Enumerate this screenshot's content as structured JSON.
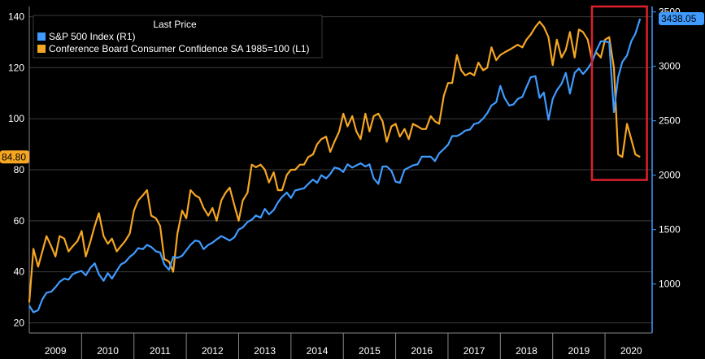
{
  "chart_data": {
    "type": "line",
    "legend": {
      "title": "Last Price",
      "placement": "top-left",
      "entries": [
        {
          "label": "S&P 500 Index  (R1)",
          "color": "#3f9bff"
        },
        {
          "label": "Conference Board Consumer Confidence SA 1985=100  (L1)",
          "color": "#f5a623"
        }
      ]
    },
    "x_tick_labels": [
      "2009",
      "2010",
      "2011",
      "2012",
      "2013",
      "2014",
      "2015",
      "2016",
      "2017",
      "2018",
      "2019",
      "2020"
    ],
    "x_range": [
      2009.0,
      2020.9
    ],
    "left_axis": {
      "range": [
        16,
        144
      ],
      "ticks": [
        "20",
        "40",
        "60",
        "80",
        "100",
        "120",
        "140"
      ]
    },
    "right_axis": {
      "range": [
        550,
        3550
      ],
      "ticks": [
        "1000",
        "1500",
        "2000",
        "2500",
        "3000",
        "3500"
      ]
    },
    "grid": "horizontal",
    "last_value_labels": {
      "left": "84.80",
      "right": "3438.05"
    },
    "series": [
      {
        "name": "Conference Board Consumer Confidence SA 1985=100",
        "axis": "left",
        "color": "#f5a623",
        "x": [
          2009.0,
          2009.08,
          2009.17,
          2009.25,
          2009.33,
          2009.42,
          2009.5,
          2009.58,
          2009.67,
          2009.75,
          2009.83,
          2009.92,
          2010.0,
          2010.08,
          2010.17,
          2010.25,
          2010.33,
          2010.42,
          2010.5,
          2010.58,
          2010.67,
          2010.75,
          2010.83,
          2010.92,
          2011.0,
          2011.08,
          2011.17,
          2011.25,
          2011.33,
          2011.42,
          2011.5,
          2011.58,
          2011.67,
          2011.75,
          2011.83,
          2011.92,
          2012.0,
          2012.08,
          2012.17,
          2012.25,
          2012.33,
          2012.42,
          2012.5,
          2012.58,
          2012.67,
          2012.75,
          2012.83,
          2012.92,
          2013.0,
          2013.08,
          2013.17,
          2013.25,
          2013.33,
          2013.42,
          2013.5,
          2013.58,
          2013.67,
          2013.75,
          2013.83,
          2013.92,
          2014.0,
          2014.08,
          2014.17,
          2014.25,
          2014.33,
          2014.42,
          2014.5,
          2014.58,
          2014.67,
          2014.75,
          2014.83,
          2014.92,
          2015.0,
          2015.08,
          2015.17,
          2015.25,
          2015.33,
          2015.42,
          2015.5,
          2015.58,
          2015.67,
          2015.75,
          2015.83,
          2015.92,
          2016.0,
          2016.08,
          2016.17,
          2016.25,
          2016.33,
          2016.42,
          2016.5,
          2016.58,
          2016.67,
          2016.75,
          2016.83,
          2016.92,
          2017.0,
          2017.08,
          2017.17,
          2017.25,
          2017.33,
          2017.42,
          2017.5,
          2017.58,
          2017.67,
          2017.75,
          2017.83,
          2017.92,
          2018.0,
          2018.08,
          2018.17,
          2018.25,
          2018.33,
          2018.42,
          2018.5,
          2018.58,
          2018.67,
          2018.75,
          2018.83,
          2018.92,
          2019.0,
          2019.08,
          2019.17,
          2019.25,
          2019.33,
          2019.42,
          2019.5,
          2019.58,
          2019.67,
          2019.75,
          2019.83,
          2019.92,
          2020.0,
          2020.08,
          2020.17,
          2020.25,
          2020.33,
          2020.42,
          2020.5,
          2020.58,
          2020.67
        ],
        "values": [
          28,
          49,
          42,
          48,
          54,
          50,
          46,
          54,
          53,
          48,
          50,
          52,
          56,
          46,
          52,
          58,
          63,
          54,
          51,
          53,
          48,
          50,
          52,
          55,
          64,
          68,
          70,
          72,
          62,
          61,
          58,
          45,
          44,
          40,
          55,
          64,
          61,
          72,
          70,
          69,
          65,
          62,
          65,
          60,
          68,
          71,
          73,
          66,
          60,
          68,
          71,
          82,
          81,
          82,
          80,
          75,
          79,
          72,
          72,
          78,
          80,
          80,
          82,
          82,
          85,
          86,
          90,
          92,
          93,
          87,
          91,
          95,
          102,
          97,
          101,
          95,
          92,
          102,
          95,
          101,
          102,
          99,
          91,
          97,
          98,
          93,
          96,
          92,
          98,
          97,
          96,
          96,
          101,
          99,
          98,
          109,
          114,
          114,
          125,
          119,
          117,
          118,
          117,
          122,
          119,
          120,
          128,
          123,
          125,
          126,
          127,
          128,
          129,
          128,
          131,
          133,
          136,
          138,
          136,
          132,
          121,
          131,
          124,
          127,
          134,
          124,
          135,
          134,
          131,
          123,
          126,
          124,
          131,
          132,
          120,
          86,
          85,
          98,
          92,
          86,
          85
        ]
      },
      {
        "name": "S&P 500 Index",
        "axis": "right",
        "color": "#3f9bff",
        "x": [
          2009.0,
          2009.08,
          2009.17,
          2009.25,
          2009.33,
          2009.42,
          2009.5,
          2009.58,
          2009.67,
          2009.75,
          2009.83,
          2009.92,
          2010.0,
          2010.08,
          2010.17,
          2010.25,
          2010.33,
          2010.42,
          2010.5,
          2010.58,
          2010.67,
          2010.75,
          2010.83,
          2010.92,
          2011.0,
          2011.08,
          2011.17,
          2011.25,
          2011.33,
          2011.42,
          2011.5,
          2011.58,
          2011.67,
          2011.75,
          2011.83,
          2011.92,
          2012.0,
          2012.08,
          2012.17,
          2012.25,
          2012.33,
          2012.42,
          2012.5,
          2012.58,
          2012.67,
          2012.75,
          2012.83,
          2012.92,
          2013.0,
          2013.08,
          2013.17,
          2013.25,
          2013.33,
          2013.42,
          2013.5,
          2013.58,
          2013.67,
          2013.75,
          2013.83,
          2013.92,
          2014.0,
          2014.08,
          2014.17,
          2014.25,
          2014.33,
          2014.42,
          2014.5,
          2014.58,
          2014.67,
          2014.75,
          2014.83,
          2014.92,
          2015.0,
          2015.08,
          2015.17,
          2015.25,
          2015.33,
          2015.42,
          2015.5,
          2015.58,
          2015.67,
          2015.75,
          2015.83,
          2015.92,
          2016.0,
          2016.08,
          2016.17,
          2016.25,
          2016.33,
          2016.42,
          2016.5,
          2016.58,
          2016.67,
          2016.75,
          2016.83,
          2016.92,
          2017.0,
          2017.08,
          2017.17,
          2017.25,
          2017.33,
          2017.42,
          2017.5,
          2017.58,
          2017.67,
          2017.75,
          2017.83,
          2017.92,
          2018.0,
          2018.08,
          2018.17,
          2018.25,
          2018.33,
          2018.42,
          2018.5,
          2018.58,
          2018.67,
          2018.75,
          2018.83,
          2018.92,
          2019.0,
          2019.08,
          2019.17,
          2019.25,
          2019.33,
          2019.42,
          2019.5,
          2019.58,
          2019.67,
          2019.75,
          2019.83,
          2019.92,
          2020.0,
          2020.08,
          2020.17,
          2020.25,
          2020.33,
          2020.42,
          2020.5,
          2020.58,
          2020.67
        ],
        "values": [
          800,
          740,
          760,
          860,
          920,
          930,
          970,
          1020,
          1050,
          1040,
          1090,
          1110,
          1120,
          1080,
          1150,
          1190,
          1090,
          1030,
          1100,
          1050,
          1120,
          1180,
          1200,
          1250,
          1280,
          1330,
          1320,
          1360,
          1340,
          1300,
          1290,
          1180,
          1130,
          1250,
          1240,
          1260,
          1310,
          1360,
          1400,
          1390,
          1320,
          1360,
          1380,
          1410,
          1440,
          1420,
          1400,
          1430,
          1500,
          1520,
          1570,
          1590,
          1630,
          1610,
          1690,
          1640,
          1680,
          1750,
          1800,
          1840,
          1790,
          1860,
          1870,
          1880,
          1920,
          1960,
          1930,
          2000,
          1970,
          2010,
          2070,
          2060,
          2030,
          2100,
          2070,
          2090,
          2110,
          2080,
          2100,
          1970,
          1920,
          2080,
          2080,
          2040,
          1940,
          1930,
          2050,
          2070,
          2090,
          2100,
          2170,
          2170,
          2170,
          2130,
          2200,
          2240,
          2280,
          2360,
          2360,
          2380,
          2410,
          2420,
          2470,
          2480,
          2520,
          2570,
          2640,
          2670,
          2820,
          2710,
          2640,
          2650,
          2700,
          2720,
          2810,
          2900,
          2910,
          2710,
          2760,
          2510,
          2700,
          2780,
          2840,
          2940,
          2750,
          2940,
          2980,
          2930,
          2980,
          3040,
          3140,
          3230,
          3230,
          3220,
          2580,
          2900,
          3040,
          3100,
          3230,
          3300,
          3438
        ]
      }
    ],
    "highlight_box": {
      "x_range": [
        2019.75,
        2020.8
      ],
      "left_range": [
        76,
        144
      ],
      "color": "#e0202c"
    }
  }
}
